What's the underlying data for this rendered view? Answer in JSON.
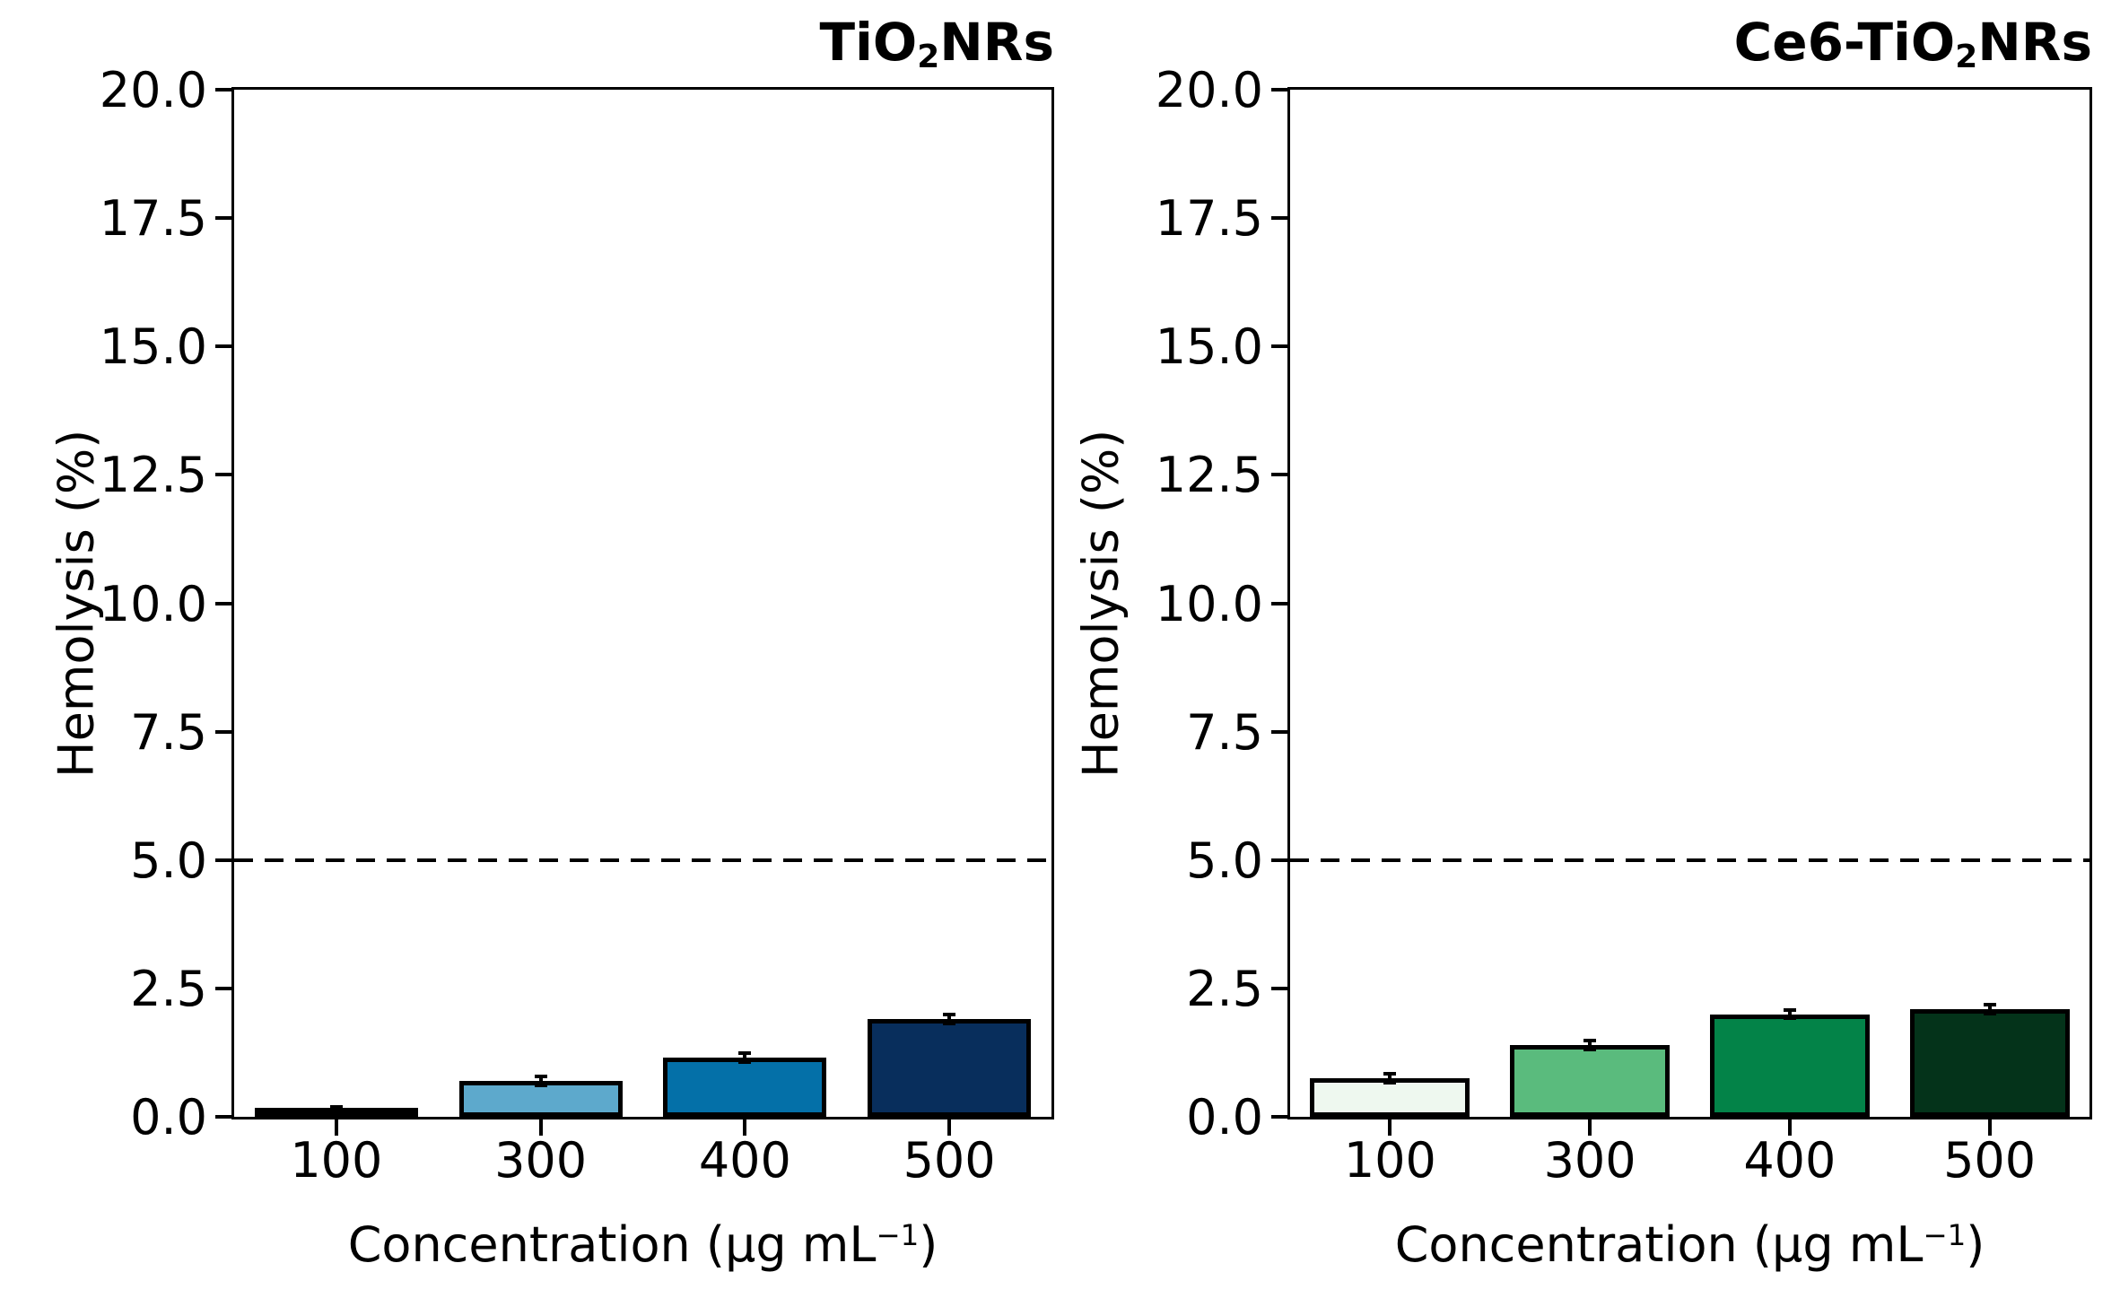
{
  "chart_data": [
    {
      "type": "bar",
      "title": "TiO2NRs",
      "title_parts": {
        "base": "TiO",
        "sub": "2",
        "suffix": "NRs"
      },
      "categories": [
        "100",
        "300",
        "400",
        "500"
      ],
      "values": [
        0.1,
        0.7,
        1.15,
        1.9
      ],
      "errors": [
        0.05,
        0.05,
        0.05,
        0.05
      ],
      "bar_colors": [
        "#f7fbff",
        "#5da9cc",
        "#0470a8",
        "#082e5c"
      ],
      "edge_color": "#000000",
      "xlabel": "Concentration (μg mL−1)",
      "xlabel_parts": {
        "base": "Concentration (μg mL",
        "sup": "−1",
        "close": ")"
      },
      "ylabel": "Hemolysis (%)",
      "ylim": [
        0,
        20
      ],
      "yticks": [
        0,
        2.5,
        5,
        7.5,
        10,
        12.5,
        15,
        17.5,
        20
      ],
      "ytick_labels": [
        "0.0",
        "2.5",
        "5.0",
        "7.5",
        "10.0",
        "12.5",
        "15.0",
        "17.5",
        "20.0"
      ],
      "threshold_line_y": 5,
      "threshold_line_style": "dashed",
      "grid": false
    },
    {
      "type": "bar",
      "title": "Ce6-TiO2NRs",
      "title_parts": {
        "base": "Ce6-TiO",
        "sub": "2",
        "suffix": "NRs"
      },
      "categories": [
        "100",
        "300",
        "400",
        "500"
      ],
      "values": [
        0.75,
        1.4,
        2.0,
        2.1
      ],
      "errors": [
        0.05,
        0.05,
        0.05,
        0.05
      ],
      "bar_colors": [
        "#eef8ef",
        "#5abb7d",
        "#038348",
        "#04331a"
      ],
      "edge_color": "#000000",
      "xlabel": "Concentration (μg mL−1)",
      "xlabel_parts": {
        "base": "Concentration (μg mL",
        "sup": "−1",
        "close": ")"
      },
      "ylabel": "Hemolysis (%)",
      "ylim": [
        0,
        20
      ],
      "yticks": [
        0,
        2.5,
        5,
        7.5,
        10,
        12.5,
        15,
        17.5,
        20
      ],
      "ytick_labels": [
        "0.0",
        "2.5",
        "5.0",
        "7.5",
        "10.0",
        "12.5",
        "15.0",
        "17.5",
        "20.0"
      ],
      "threshold_line_y": 5,
      "threshold_line_style": "dashed",
      "grid": false
    }
  ]
}
